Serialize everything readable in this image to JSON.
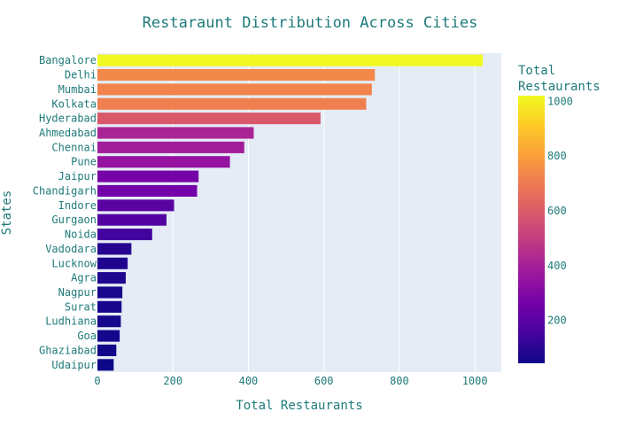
{
  "chart_data": {
    "type": "bar",
    "orientation": "horizontal",
    "title": "Restaraunt Distribution Across Cities",
    "xlabel": "Total Restaurants",
    "ylabel": "States",
    "xlim": [
      0,
      1070
    ],
    "x_ticks": [
      0,
      200,
      400,
      600,
      800,
      1000
    ],
    "grid": true,
    "plot_background": "#e5ecf6",
    "categories": [
      "Bangalore",
      "Delhi",
      "Mumbai",
      "Kolkata",
      "Hyderabad",
      "Ahmedabad",
      "Chennai",
      "Pune",
      "Jaipur",
      "Chandigarh",
      "Indore",
      "Gurgaon",
      "Noida",
      "Vadodara",
      "Lucknow",
      "Agra",
      "Nagpur",
      "Surat",
      "Ludhiana",
      "Goa",
      "Ghaziabad",
      "Udaipur"
    ],
    "values": [
      1021,
      735,
      727,
      712,
      591,
      414,
      389,
      351,
      268,
      264,
      203,
      183,
      145,
      90,
      80,
      75,
      66,
      64,
      62,
      59,
      50,
      43
    ],
    "colorbar": {
      "title_lines": [
        "Total",
        "Restaurants"
      ],
      "range": [
        43,
        1021
      ],
      "ticks": [
        200,
        400,
        600,
        800,
        1000
      ],
      "colorscale": [
        "#0d0887",
        "#46039f",
        "#7201a8",
        "#9c179e",
        "#bd3786",
        "#d8576b",
        "#ed7953",
        "#fb9f3a",
        "#fdca26",
        "#f0f921"
      ]
    }
  }
}
